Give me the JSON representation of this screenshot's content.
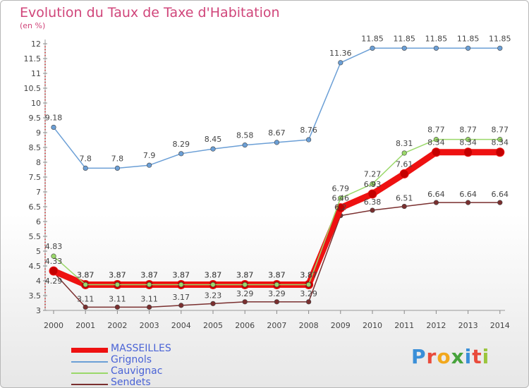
{
  "title": "Evolution du Taux de Taxe d'Habitation",
  "subtitle": "(en %)",
  "brand": "Proxiti",
  "chart_data": {
    "type": "line",
    "title": "Evolution du Taux de Taxe d'Habitation",
    "ylabel": "(en %)",
    "xlabel": "",
    "ylim": [
      3,
      12
    ],
    "y_ticks": [
      "3",
      "3.5",
      "4",
      "4.5",
      "5",
      "5.5",
      "6",
      "6.5",
      "7",
      "7.5",
      "8",
      "8.5",
      "9",
      "9.5",
      "10",
      "10.5",
      "11",
      "11.5",
      "12"
    ],
    "grid": false,
    "legend_position": "bottom-left",
    "x": [
      "2000",
      "2001",
      "2002",
      "2003",
      "2004",
      "2005",
      "2006",
      "2007",
      "2008",
      "2009",
      "2010",
      "2011",
      "2012",
      "2013",
      "2014"
    ],
    "series": [
      {
        "name": "MASSEILLES",
        "color": "#ee1111",
        "values": [
          4.33,
          3.87,
          3.87,
          3.87,
          3.87,
          3.87,
          3.87,
          3.87,
          3.87,
          6.46,
          6.93,
          7.61,
          8.34,
          8.34,
          8.34
        ],
        "labels": [
          "4.33",
          "3.87",
          "3.87",
          "3.87",
          "3.87",
          "3.87",
          "3.87",
          "3.87",
          "3.87",
          "6.46",
          "6.93",
          "7.61",
          "8.34",
          "8.34",
          "8.34"
        ]
      },
      {
        "name": "Grignols",
        "color": "#6b9fd6",
        "values": [
          9.18,
          7.8,
          7.8,
          7.9,
          8.29,
          8.45,
          8.58,
          8.67,
          8.76,
          11.36,
          11.85,
          11.85,
          11.85,
          11.85,
          11.85
        ],
        "labels": [
          "9.18",
          "7.8",
          "7.8",
          "7.9",
          "8.29",
          "8.45",
          "8.58",
          "8.67",
          "8.76",
          "11.36",
          "11.85",
          "11.85",
          "11.85",
          "11.85",
          "11.85"
        ]
      },
      {
        "name": "Cauvignac",
        "color": "#9ad86a",
        "values": [
          4.83,
          3.87,
          3.87,
          3.87,
          3.87,
          3.87,
          3.87,
          3.87,
          3.87,
          6.79,
          7.27,
          8.31,
          8.77,
          8.77,
          8.77
        ],
        "labels": [
          "4.83",
          "3.87",
          "3.87",
          "3.87",
          "3.87",
          "3.87",
          "3.87",
          "3.87",
          "3.87",
          "6.79",
          "7.27",
          "8.31",
          "8.77",
          "8.77",
          "8.77"
        ]
      },
      {
        "name": "Sendets",
        "color": "#7a2f2f",
        "values": [
          4.29,
          3.11,
          3.11,
          3.11,
          3.17,
          3.23,
          3.29,
          3.29,
          3.29,
          6.2,
          6.38,
          6.51,
          6.64,
          6.64,
          6.64
        ],
        "labels": [
          "4.29",
          "3.11",
          "3.11",
          "3.11",
          "3.17",
          "3.23",
          "3.29",
          "3.29",
          "3.29",
          "6.2",
          "6.38",
          "6.51",
          "6.64",
          "6.64",
          "6.64"
        ]
      }
    ]
  }
}
